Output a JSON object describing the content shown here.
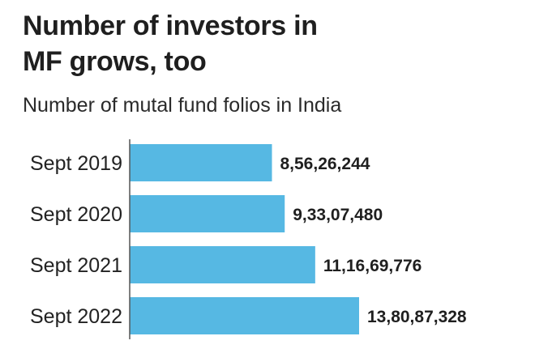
{
  "chart_data": {
    "type": "bar",
    "orientation": "horizontal",
    "title_lines": [
      "Number of investors in",
      "MF grows, too"
    ],
    "subtitle": "Number of mutal fund folios in India",
    "categories": [
      "Sept 2019",
      "Sept 2020",
      "Sept 2021",
      "Sept 2022"
    ],
    "values": [
      85626244,
      93307480,
      111669776,
      138087328
    ],
    "value_labels": [
      "8,56,26,244",
      "9,33,07,480",
      "11,16,69,776",
      "13,80,87,328"
    ],
    "bar_color": "#56b8e3",
    "axis_line_color": "#555555",
    "grid": false,
    "legend": "none"
  }
}
